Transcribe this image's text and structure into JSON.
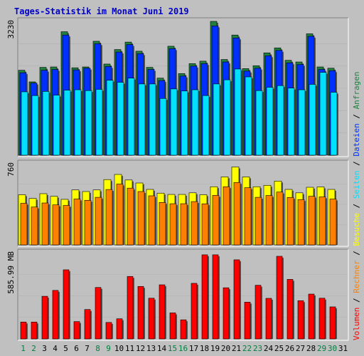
{
  "chart_data": {
    "title": "Tages-Statistik im Monat Juni 2019",
    "type": "bar",
    "categories": [
      "1",
      "2",
      "3",
      "4",
      "5",
      "6",
      "7",
      "8",
      "9",
      "10",
      "11",
      "12",
      "13",
      "14",
      "15",
      "16",
      "17",
      "18",
      "19",
      "20",
      "21",
      "22",
      "23",
      "24",
      "25",
      "26",
      "27",
      "28",
      "29",
      "30",
      "31"
    ],
    "weekend_days": [
      "1",
      "2",
      "8",
      "9",
      "15",
      "16",
      "22",
      "23",
      "29",
      "30"
    ],
    "colors": {
      "frame": "#c0c0c0",
      "plot_bg": "#c0c0c0",
      "title": "#0000cc",
      "weekday_label": "#000000",
      "weekend_label": "#008040",
      "anfragen": "#208040",
      "dateien": "#0030ff",
      "seiten": "#00e0ff",
      "besuche": "#ffff00",
      "rechner": "#ff8000",
      "volumen": "#ff0000"
    },
    "panels": [
      {
        "axis_label": "3230",
        "ylim": [
          0,
          3230
        ],
        "series": [
          {
            "name": "Anfragen",
            "color": "#208040",
            "values": [
              2050,
              1770,
              2120,
              2130,
              2980,
              2110,
              2130,
              2750,
              2200,
              2550,
              2730,
              2510,
              2120,
              1860,
              2630,
              1970,
              2210,
              2270,
              3230,
              2310,
              2900,
              2090,
              2160,
              2470,
              2590,
              2290,
              2250,
              2930,
              2130,
              2100,
              0
            ]
          },
          {
            "name": "Dateien",
            "color": "#0030ff",
            "values": [
              1990,
              1740,
              2050,
              2070,
              2900,
              2060,
              2100,
              2690,
              2140,
              2490,
              2670,
              2450,
              2070,
              1800,
              2570,
              1910,
              2150,
              2210,
              3120,
              2250,
              2830,
              2030,
              2100,
              2400,
              2530,
              2230,
              2190,
              2870,
              2070,
              2040,
              0
            ]
          },
          {
            "name": "Seiten",
            "color": "#00e0ff",
            "values": [
              1530,
              1440,
              1540,
              1450,
              1570,
              1580,
              1560,
              1590,
              1810,
              1760,
              1860,
              1720,
              1720,
              1370,
              1600,
              1550,
              1580,
              1440,
              1720,
              1820,
              2080,
              1890,
              1560,
              1640,
              1680,
              1620,
              1580,
              1710,
              2000,
              1520,
              0
            ]
          }
        ]
      },
      {
        "axis_label": "760",
        "ylim": [
          0,
          760
        ],
        "series": [
          {
            "name": "Besuche",
            "color": "#ffff00",
            "values": [
              470,
              435,
              480,
              455,
              427,
              515,
              500,
              515,
              612,
              660,
              608,
              580,
              520,
              485,
              473,
              473,
              488,
              470,
              545,
              637,
              730,
              637,
              545,
              558,
              598,
              520,
              488,
              540,
              543,
              520,
              0
            ]
          },
          {
            "name": "Rechner",
            "color": "#ff8000",
            "values": [
              390,
              355,
              393,
              375,
              370,
              430,
              418,
              446,
              519,
              570,
              532,
              500,
              460,
              398,
              386,
              386,
              406,
              385,
              464,
              545,
              585,
              536,
              446,
              463,
              495,
              445,
              425,
              456,
              450,
              430,
              0
            ]
          }
        ]
      },
      {
        "axis_label": "585.99 MB",
        "ylim": [
          0,
          585.99
        ],
        "series": [
          {
            "name": "Volumen",
            "color": "#ff0000",
            "values": [
              115,
              115,
              290,
              330,
              470,
              118,
              200,
              350,
              112,
              137,
              425,
              357,
              277,
              368,
              177,
              130,
              378,
              572,
              572,
              348,
              538,
              250,
              365,
              276,
              562,
              405,
              260,
              305,
              277,
              218,
              0
            ]
          }
        ]
      }
    ],
    "side_legend": [
      {
        "text": "Volumen",
        "color": "#ff0000"
      },
      {
        "text": " / ",
        "color": "#000000"
      },
      {
        "text": "Rechner",
        "color": "#ff8000"
      },
      {
        "text": " / ",
        "color": "#000000"
      },
      {
        "text": "Besuche",
        "color": "#ffff00"
      },
      {
        "text": " / ",
        "color": "#000000"
      },
      {
        "text": "Seiten",
        "color": "#00e0ff"
      },
      {
        "text": " / ",
        "color": "#000000"
      },
      {
        "text": "Dateien",
        "color": "#0030ff"
      },
      {
        "text": " / ",
        "color": "#000000"
      },
      {
        "text": "Anfragen",
        "color": "#208040"
      }
    ]
  }
}
